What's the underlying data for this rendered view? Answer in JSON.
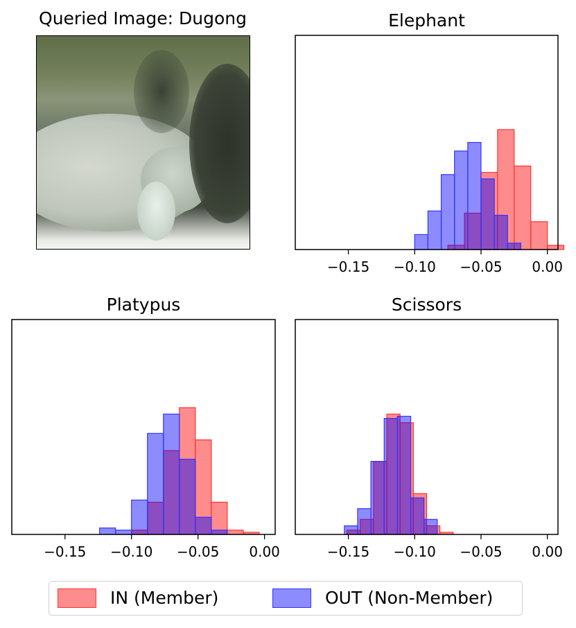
{
  "photo": {
    "title": "Queried Image: Dugong",
    "description_icon": "dugong-photo"
  },
  "colors": {
    "in_fill": "rgba(255,0,0,0.45)",
    "in_edge": "#ff3333",
    "out_fill": "rgba(0,0,255,0.45)",
    "out_edge": "#3333ff"
  },
  "legend": {
    "in_label": "IN (Member)",
    "out_label": "OUT (Non-Member)",
    "placement": "bottom-center"
  },
  "chart_data": [
    {
      "type": "bar",
      "title": "Elephant",
      "xlabel": "",
      "ylabel": "",
      "xlim": [
        -0.19,
        0.008
      ],
      "ymax": 1.0,
      "xticks": [
        -0.15,
        -0.1,
        -0.05,
        0.0
      ],
      "xtick_labels": [
        "−0.15",
        "−0.10",
        "−0.05",
        "0.00"
      ],
      "grid": false,
      "series": [
        {
          "name": "IN (Member)",
          "bins": [
            [
              -0.075,
              -0.0625,
              0.02
            ],
            [
              -0.0625,
              -0.05,
              0.17
            ],
            [
              -0.05,
              -0.0375,
              0.36
            ],
            [
              -0.0375,
              -0.025,
              0.56
            ],
            [
              -0.025,
              -0.0125,
              0.39
            ],
            [
              -0.0125,
              0.0,
              0.13
            ],
            [
              0.0,
              0.0125,
              0.02
            ]
          ]
        },
        {
          "name": "OUT (Non-Member)",
          "bins": [
            [
              -0.1,
              -0.09,
              0.07
            ],
            [
              -0.09,
              -0.08,
              0.18
            ],
            [
              -0.08,
              -0.07,
              0.35
            ],
            [
              -0.07,
              -0.06,
              0.46
            ],
            [
              -0.06,
              -0.05,
              0.5
            ],
            [
              -0.05,
              -0.04,
              0.33
            ],
            [
              -0.04,
              -0.03,
              0.16
            ],
            [
              -0.03,
              -0.02,
              0.03
            ]
          ]
        }
      ]
    },
    {
      "type": "bar",
      "title": "Platypus",
      "xlabel": "",
      "ylabel": "",
      "xlim": [
        -0.19,
        0.008
      ],
      "ymax": 1.0,
      "xticks": [
        -0.15,
        -0.1,
        -0.05,
        0.0
      ],
      "xtick_labels": [
        "−0.15",
        "−0.10",
        "−0.05",
        "0.00"
      ],
      "grid": false,
      "series": [
        {
          "name": "IN (Member)",
          "bins": [
            [
              -0.1,
              -0.088,
              0.02
            ],
            [
              -0.088,
              -0.076,
              0.15
            ],
            [
              -0.076,
              -0.064,
              0.39
            ],
            [
              -0.064,
              -0.052,
              0.59
            ],
            [
              -0.052,
              -0.04,
              0.44
            ],
            [
              -0.04,
              -0.028,
              0.15
            ],
            [
              -0.028,
              -0.016,
              0.02
            ],
            [
              -0.016,
              -0.004,
              0.01
            ]
          ]
        },
        {
          "name": "OUT (Non-Member)",
          "bins": [
            [
              -0.124,
              -0.112,
              0.03
            ],
            [
              -0.112,
              -0.1,
              0.02
            ],
            [
              -0.1,
              -0.088,
              0.16
            ],
            [
              -0.088,
              -0.076,
              0.47
            ],
            [
              -0.076,
              -0.064,
              0.56
            ],
            [
              -0.064,
              -0.052,
              0.35
            ],
            [
              -0.052,
              -0.04,
              0.08
            ],
            [
              -0.04,
              -0.028,
              0.02
            ]
          ]
        }
      ]
    },
    {
      "type": "bar",
      "title": "Scissors",
      "xlabel": "",
      "ylabel": "",
      "xlim": [
        -0.19,
        0.008
      ],
      "ymax": 1.0,
      "xticks": [
        -0.15,
        -0.1,
        -0.05,
        0.0
      ],
      "xtick_labels": [
        "−0.15",
        "−0.10",
        "−0.05",
        "0.00"
      ],
      "grid": false,
      "series": [
        {
          "name": "IN (Member)",
          "bins": [
            [
              -0.151,
              -0.141,
              0.02
            ],
            [
              -0.141,
              -0.131,
              0.07
            ],
            [
              -0.131,
              -0.121,
              0.34
            ],
            [
              -0.121,
              -0.111,
              0.56
            ],
            [
              -0.111,
              -0.101,
              0.52
            ],
            [
              -0.101,
              -0.091,
              0.19
            ],
            [
              -0.091,
              -0.081,
              0.04
            ],
            [
              -0.081,
              -0.071,
              0.01
            ]
          ]
        },
        {
          "name": "OUT (Non-Member)",
          "bins": [
            [
              -0.153,
              -0.143,
              0.04
            ],
            [
              -0.143,
              -0.133,
              0.12
            ],
            [
              -0.133,
              -0.123,
              0.34
            ],
            [
              -0.123,
              -0.113,
              0.54
            ],
            [
              -0.113,
              -0.103,
              0.55
            ],
            [
              -0.103,
              -0.093,
              0.17
            ],
            [
              -0.093,
              -0.083,
              0.07
            ]
          ]
        }
      ]
    }
  ]
}
